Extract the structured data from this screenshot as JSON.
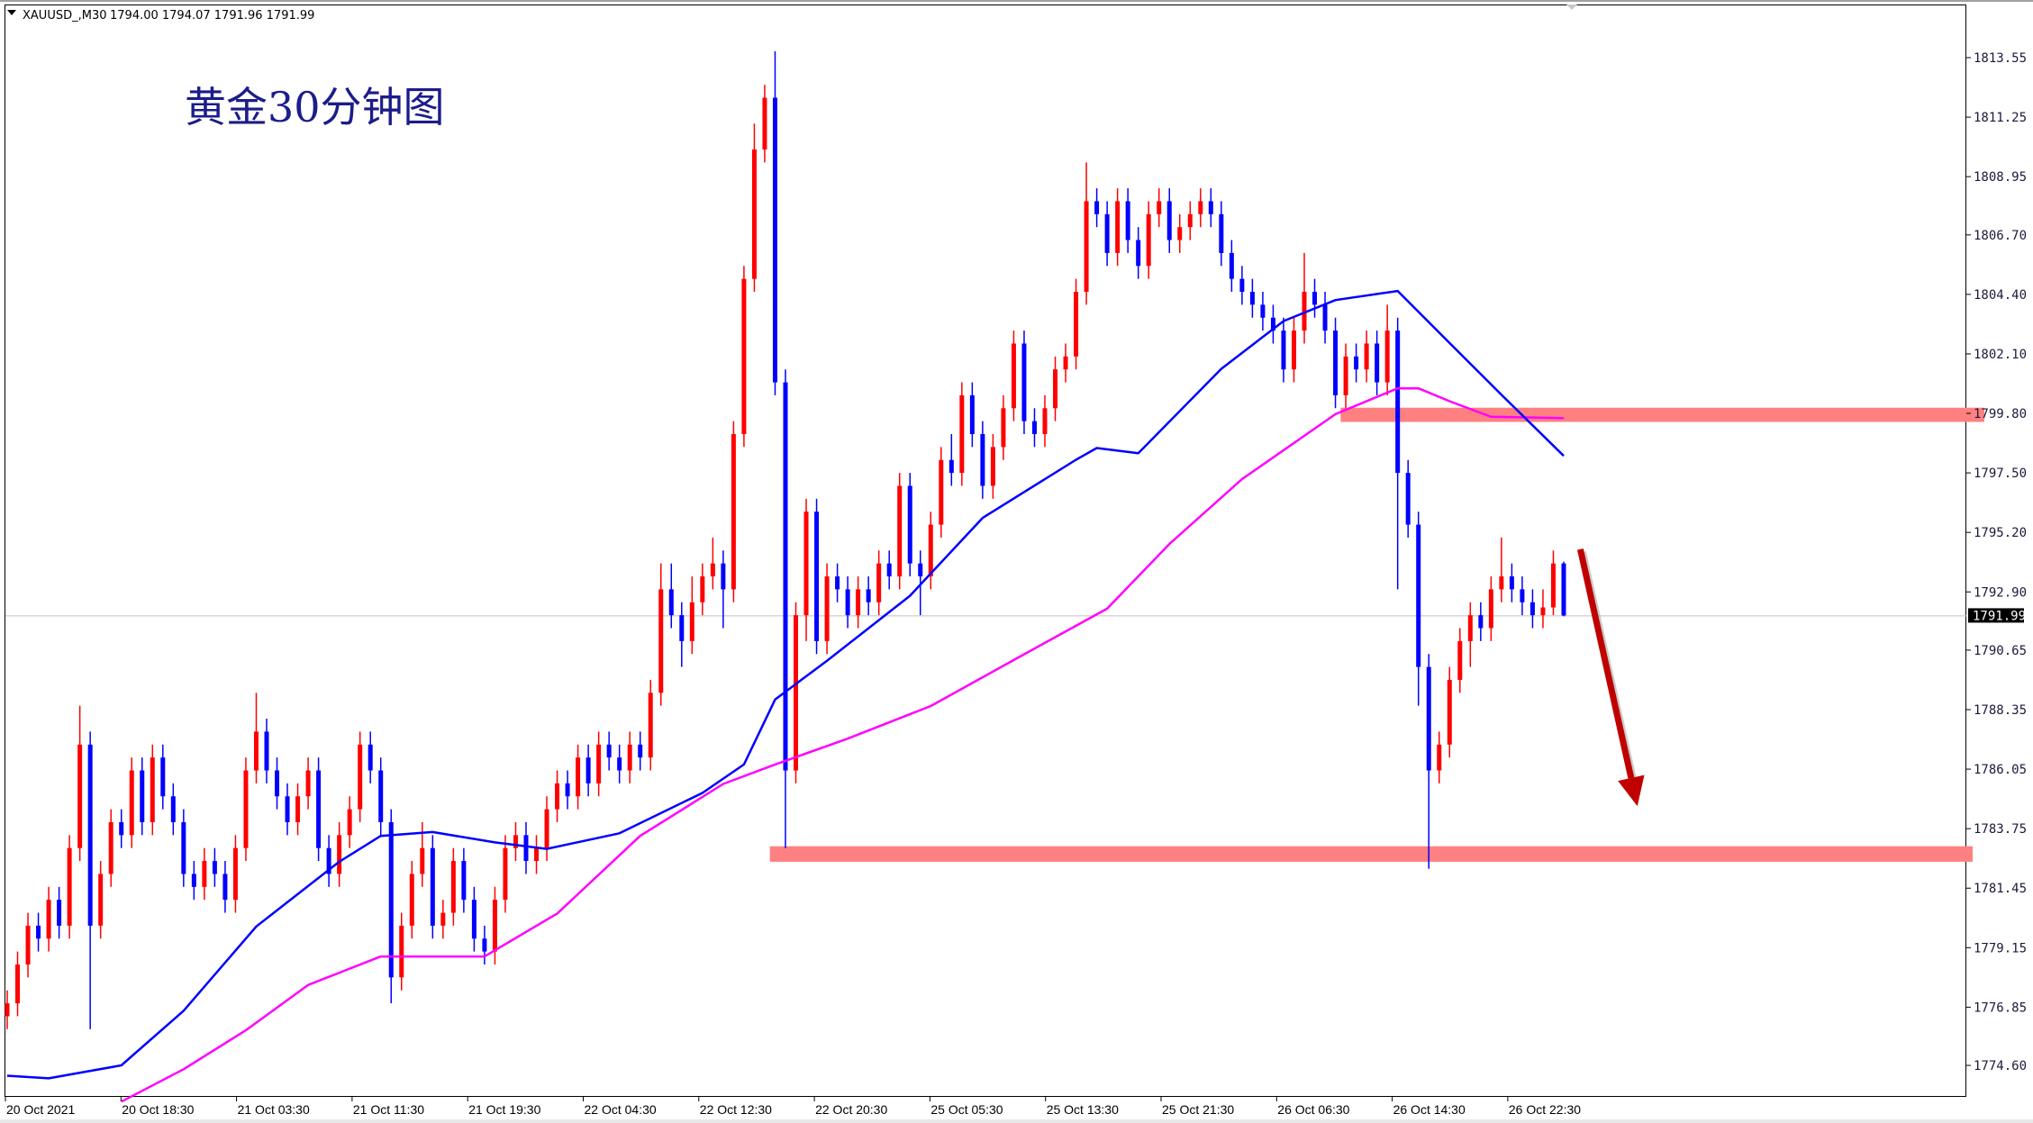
{
  "header": {
    "symbol": "XAUUSD_,M30",
    "ohlc_text": "1794.00 1794.07 1791.96 1791.99"
  },
  "title": "黄金30分钟图",
  "colors": {
    "bull": "#ff0000",
    "bear": "#0000ff",
    "ma_fast": "#0000ff",
    "ma_slow": "#ff00ff",
    "zone": "#ff8080",
    "arrow": "#c00000",
    "grid_price_line": "#c0c0c0"
  },
  "chart_data": {
    "type": "candlestick",
    "title": "黄金30分钟图",
    "ylim": [
      1773.0,
      1815.5
    ],
    "y_ticks": [
      "1813.55",
      "1811.25",
      "1808.95",
      "1806.70",
      "1804.40",
      "1802.10",
      "1799.80",
      "1797.50",
      "1795.20",
      "1792.90",
      "1790.65",
      "1788.35",
      "1786.05",
      "1783.75",
      "1781.45",
      "1779.15",
      "1776.85",
      "1774.60"
    ],
    "x_ticks": [
      "20 Oct 2021",
      "20 Oct 18:30",
      "21 Oct 03:30",
      "21 Oct 11:30",
      "21 Oct 19:30",
      "22 Oct 04:30",
      "22 Oct 12:30",
      "22 Oct 20:30",
      "25 Oct 05:30",
      "25 Oct 13:30",
      "25 Oct 21:30",
      "26 Oct 06:30",
      "26 Oct 14:30",
      "26 Oct 22:30"
    ],
    "current_price": "1791.99",
    "candles_ohlc": [
      [
        1776.5,
        1777.5,
        1776,
        1777
      ],
      [
        1777,
        1779,
        1776.5,
        1778.5
      ],
      [
        1778.5,
        1780.5,
        1778,
        1780
      ],
      [
        1780,
        1780.5,
        1779,
        1779.5
      ],
      [
        1779.5,
        1781.5,
        1779,
        1781
      ],
      [
        1781,
        1781.5,
        1779.5,
        1780
      ],
      [
        1780,
        1783.5,
        1779.5,
        1783
      ],
      [
        1783,
        1788.5,
        1782.5,
        1787
      ],
      [
        1787,
        1787.5,
        1776,
        1780
      ],
      [
        1780,
        1782.5,
        1779.5,
        1782
      ],
      [
        1782,
        1784.5,
        1781.5,
        1784
      ],
      [
        1784,
        1784.5,
        1783,
        1783.5
      ],
      [
        1783.5,
        1786.5,
        1783,
        1786
      ],
      [
        1786,
        1786.5,
        1783.5,
        1784
      ],
      [
        1784,
        1787,
        1783.5,
        1786.5
      ],
      [
        1786.5,
        1787,
        1784.5,
        1785
      ],
      [
        1785,
        1785.5,
        1783.5,
        1784
      ],
      [
        1784,
        1784.5,
        1781.5,
        1782
      ],
      [
        1782,
        1782.5,
        1781,
        1781.5
      ],
      [
        1781.5,
        1783,
        1781,
        1782.5
      ],
      [
        1782.5,
        1783,
        1781.5,
        1782
      ],
      [
        1782,
        1782.5,
        1780.5,
        1781
      ],
      [
        1781,
        1783.5,
        1780.5,
        1783
      ],
      [
        1783,
        1786.5,
        1782.5,
        1786
      ],
      [
        1786,
        1789,
        1785.5,
        1787.5
      ],
      [
        1787.5,
        1788,
        1785.5,
        1786
      ],
      [
        1786,
        1786.5,
        1784.5,
        1785
      ],
      [
        1785,
        1785.5,
        1783.5,
        1784
      ],
      [
        1784,
        1785.5,
        1783.5,
        1785
      ],
      [
        1785,
        1786.5,
        1784.5,
        1786
      ],
      [
        1786,
        1786.5,
        1782.5,
        1783
      ],
      [
        1783,
        1783.5,
        1781.5,
        1782
      ],
      [
        1782,
        1784,
        1781.5,
        1783.5
      ],
      [
        1783.5,
        1785,
        1783,
        1784.5
      ],
      [
        1784.5,
        1787.5,
        1784,
        1787
      ],
      [
        1787,
        1787.5,
        1785.5,
        1786
      ],
      [
        1786,
        1786.5,
        1783.5,
        1784
      ],
      [
        1784,
        1784.5,
        1777,
        1778
      ],
      [
        1778,
        1780.5,
        1777.5,
        1780
      ],
      [
        1780,
        1782.5,
        1779.5,
        1782
      ],
      [
        1782,
        1784,
        1781.5,
        1783
      ],
      [
        1783,
        1783.5,
        1779.5,
        1780
      ],
      [
        1780,
        1781,
        1779.5,
        1780.5
      ],
      [
        1780.5,
        1783,
        1780,
        1782.5
      ],
      [
        1782.5,
        1783,
        1780.5,
        1781
      ],
      [
        1781,
        1781.5,
        1779,
        1779.5
      ],
      [
        1779.5,
        1780,
        1778.5,
        1779
      ],
      [
        1779,
        1781.5,
        1778.5,
        1781
      ],
      [
        1781,
        1783.5,
        1780.5,
        1783
      ],
      [
        1783,
        1784,
        1782.5,
        1783.5
      ],
      [
        1783.5,
        1784,
        1782,
        1782.5
      ],
      [
        1782.5,
        1783.5,
        1782,
        1783
      ],
      [
        1783,
        1785,
        1782.5,
        1784.5
      ],
      [
        1784.5,
        1786,
        1784,
        1785.5
      ],
      [
        1785.5,
        1786,
        1784.5,
        1785
      ],
      [
        1785,
        1787,
        1784.5,
        1786.5
      ],
      [
        1786.5,
        1787,
        1785,
        1785.5
      ],
      [
        1785.5,
        1787.5,
        1785,
        1787
      ],
      [
        1787,
        1787.5,
        1786,
        1786.5
      ],
      [
        1786.5,
        1787,
        1785.5,
        1786
      ],
      [
        1786,
        1787.5,
        1785.5,
        1787
      ],
      [
        1787,
        1787.5,
        1786,
        1786.5
      ],
      [
        1786.5,
        1789.5,
        1786,
        1789
      ],
      [
        1789,
        1794,
        1788.5,
        1793
      ],
      [
        1793,
        1794,
        1791.5,
        1792
      ],
      [
        1792,
        1792.5,
        1790,
        1791
      ],
      [
        1791,
        1793.5,
        1790.5,
        1792.5
      ],
      [
        1792.5,
        1794,
        1792,
        1793.5
      ],
      [
        1793.5,
        1795,
        1793,
        1794
      ],
      [
        1794,
        1794.5,
        1791.5,
        1793
      ],
      [
        1793,
        1799.5,
        1792.5,
        1799
      ],
      [
        1799,
        1805.5,
        1798.5,
        1805
      ],
      [
        1805,
        1811,
        1804.5,
        1810
      ],
      [
        1810,
        1812.5,
        1809.5,
        1812
      ],
      [
        1812,
        1813.8,
        1800.5,
        1801
      ],
      [
        1801,
        1801.5,
        1783,
        1786
      ],
      [
        1786,
        1792.5,
        1785.5,
        1792
      ],
      [
        1792,
        1796.5,
        1791,
        1796
      ],
      [
        1796,
        1796.5,
        1790.5,
        1791
      ],
      [
        1791,
        1794,
        1790.5,
        1793.5
      ],
      [
        1793.5,
        1794,
        1792.5,
        1793
      ],
      [
        1793,
        1793.5,
        1791.5,
        1792
      ],
      [
        1792,
        1793.5,
        1791.5,
        1793
      ],
      [
        1793,
        1793.5,
        1792,
        1792.5
      ],
      [
        1792.5,
        1794.5,
        1792,
        1794
      ],
      [
        1794,
        1794.5,
        1793,
        1793.5
      ],
      [
        1793.5,
        1797.5,
        1793,
        1797
      ],
      [
        1797,
        1797.5,
        1793.5,
        1794
      ],
      [
        1794,
        1794.5,
        1792,
        1793.5
      ],
      [
        1793.5,
        1796,
        1793,
        1795.5
      ],
      [
        1795.5,
        1798.5,
        1795,
        1798
      ],
      [
        1798,
        1799,
        1797,
        1797.5
      ],
      [
        1797.5,
        1801,
        1797,
        1800.5
      ],
      [
        1800.5,
        1801,
        1798.5,
        1799
      ],
      [
        1799,
        1799.5,
        1796.5,
        1797
      ],
      [
        1797,
        1799,
        1796.5,
        1798.5
      ],
      [
        1798.5,
        1800.5,
        1798,
        1800
      ],
      [
        1800,
        1803,
        1799.5,
        1802.5
      ],
      [
        1802.5,
        1803,
        1799,
        1799.5
      ],
      [
        1799.5,
        1800,
        1798.5,
        1799
      ],
      [
        1799,
        1800.5,
        1798.5,
        1800
      ],
      [
        1800,
        1802,
        1799.5,
        1801.5
      ],
      [
        1801.5,
        1802.5,
        1801,
        1802
      ],
      [
        1802,
        1805,
        1801.5,
        1804.5
      ],
      [
        1804.5,
        1809.5,
        1804,
        1808
      ],
      [
        1808,
        1808.5,
        1807,
        1807.5
      ],
      [
        1807.5,
        1808,
        1805.5,
        1806
      ],
      [
        1806,
        1808.5,
        1805.5,
        1808
      ],
      [
        1808,
        1808.5,
        1806,
        1806.5
      ],
      [
        1806.5,
        1807,
        1805,
        1805.5
      ],
      [
        1805.5,
        1808,
        1805,
        1807.5
      ],
      [
        1807.5,
        1808.5,
        1807,
        1808
      ],
      [
        1808,
        1808.5,
        1806,
        1806.5
      ],
      [
        1806.5,
        1807.5,
        1806,
        1807
      ],
      [
        1807,
        1808,
        1806.5,
        1807.5
      ],
      [
        1807.5,
        1808.5,
        1807,
        1808
      ],
      [
        1808,
        1808.5,
        1807,
        1807.5
      ],
      [
        1807.5,
        1808,
        1805.5,
        1806
      ],
      [
        1806,
        1806.5,
        1804.5,
        1805
      ],
      [
        1805,
        1805.5,
        1804,
        1804.5
      ],
      [
        1804.5,
        1805,
        1803.5,
        1804
      ],
      [
        1804,
        1804.5,
        1803,
        1803.5
      ],
      [
        1803.5,
        1804,
        1802.5,
        1803
      ],
      [
        1803,
        1803.5,
        1801,
        1801.5
      ],
      [
        1801.5,
        1803.5,
        1801,
        1803
      ],
      [
        1803,
        1806,
        1802.5,
        1804.5
      ],
      [
        1804.5,
        1805,
        1803.5,
        1804
      ],
      [
        1804,
        1804.5,
        1802.5,
        1803
      ],
      [
        1803,
        1803.5,
        1800,
        1800.5
      ],
      [
        1800.5,
        1802.5,
        1800,
        1802
      ],
      [
        1802,
        1802.5,
        1801,
        1801.5
      ],
      [
        1801.5,
        1803,
        1801,
        1802.5
      ],
      [
        1802.5,
        1803,
        1800.5,
        1801
      ],
      [
        1801,
        1804,
        1800.5,
        1803
      ],
      [
        1803,
        1803.5,
        1793,
        1797.5
      ],
      [
        1797.5,
        1798,
        1795,
        1795.5
      ],
      [
        1795.5,
        1796,
        1788.5,
        1790
      ],
      [
        1790,
        1790.5,
        1782.2,
        1786
      ],
      [
        1786,
        1787.5,
        1785.5,
        1787
      ],
      [
        1787,
        1790,
        1786.5,
        1789.5
      ],
      [
        1789.5,
        1791.5,
        1789,
        1791
      ],
      [
        1791,
        1792.5,
        1790,
        1792
      ],
      [
        1792,
        1792.5,
        1791,
        1791.5
      ],
      [
        1791.5,
        1793.5,
        1791,
        1793
      ],
      [
        1793,
        1795,
        1792.5,
        1793.5
      ],
      [
        1793.5,
        1794,
        1792.5,
        1793
      ],
      [
        1793,
        1793.5,
        1792,
        1792.5
      ],
      [
        1792.5,
        1793,
        1791.5,
        1792
      ],
      [
        1792,
        1793,
        1791.5,
        1792.3
      ],
      [
        1792.3,
        1794.5,
        1792,
        1794
      ],
      [
        1794,
        1794.07,
        1791.96,
        1791.99
      ]
    ],
    "ma_fast_points": [
      [
        0,
        1774.2
      ],
      [
        4,
        1774.1
      ],
      [
        11,
        1774.6
      ],
      [
        17,
        1776.71
      ],
      [
        24,
        1779.97
      ],
      [
        32,
        1782.47
      ],
      [
        36,
        1783.47
      ],
      [
        41,
        1783.62
      ],
      [
        47,
        1783.22
      ],
      [
        52,
        1782.97
      ],
      [
        59,
        1783.57
      ],
      [
        67,
        1785.13
      ],
      [
        71,
        1786.23
      ],
      [
        74,
        1788.74
      ],
      [
        79,
        1790.24
      ],
      [
        87,
        1792.75
      ],
      [
        94,
        1795.76
      ],
      [
        103,
        1798.01
      ],
      [
        105,
        1798.46
      ],
      [
        109,
        1798.26
      ],
      [
        117,
        1801.52
      ],
      [
        123,
        1803.37
      ],
      [
        128,
        1804.18
      ],
      [
        134,
        1804.53
      ],
      [
        139,
        1802.52
      ],
      [
        144,
        1800.52
      ],
      [
        150,
        1798.16
      ]
    ],
    "ma_slow_points": [
      [
        11,
        1773.2
      ],
      [
        17,
        1774.45
      ],
      [
        23,
        1775.96
      ],
      [
        29,
        1777.71
      ],
      [
        36,
        1778.81
      ],
      [
        42,
        1778.81
      ],
      [
        46,
        1778.81
      ],
      [
        53,
        1780.47
      ],
      [
        61,
        1783.47
      ],
      [
        69,
        1785.48
      ],
      [
        74,
        1786.23
      ],
      [
        81,
        1787.23
      ],
      [
        89,
        1788.49
      ],
      [
        98,
        1790.49
      ],
      [
        106,
        1792.25
      ],
      [
        112,
        1794.75
      ],
      [
        119,
        1797.26
      ],
      [
        128,
        1799.77
      ],
      [
        134,
        1800.77
      ],
      [
        136,
        1800.77
      ],
      [
        139,
        1800.27
      ],
      [
        143,
        1799.67
      ],
      [
        150,
        1799.62
      ]
    ],
    "zones": [
      {
        "name": "resistance",
        "from_bar": 128.5,
        "to_bar": 190,
        "price_top": 1800.02,
        "price_bottom": 1799.47
      },
      {
        "name": "support",
        "from_bar": 73.5,
        "to_bar": 190,
        "price_top": 1783.07,
        "price_bottom": 1782.47
      }
    ],
    "arrow": {
      "from": [
        151.6,
        1794.55
      ],
      "to": [
        157.1,
        1784.62
      ],
      "direction": "down"
    }
  }
}
